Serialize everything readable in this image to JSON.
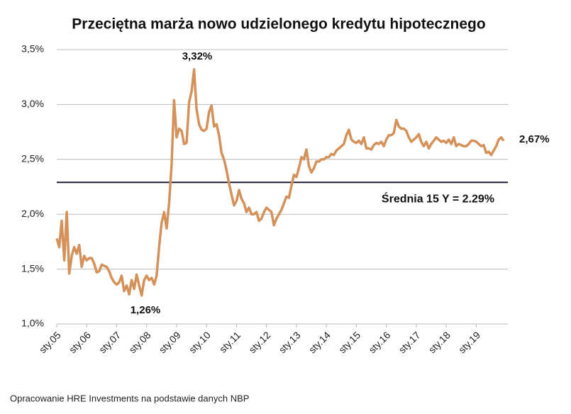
{
  "chart_data": {
    "type": "line",
    "title": "Przeciętna marża nowo udzielonego kredytu hipotecznego",
    "source": "Opracowanie HRE Investments na podstawie danych NBP",
    "annotations": [
      "3,32%",
      "1,26%",
      "2,67%"
    ],
    "mean": 2.29,
    "mean_label": "Średnia 15 Y = 2.29%",
    "mean_color": "#1c1c30",
    "categories": [
      "sty.05",
      null,
      null,
      null,
      null,
      null,
      null,
      null,
      null,
      null,
      null,
      null,
      "sty.06",
      null,
      null,
      null,
      null,
      null,
      null,
      null,
      null,
      null,
      null,
      null,
      "sty.07",
      null,
      null,
      null,
      null,
      null,
      null,
      null,
      null,
      null,
      null,
      null,
      "sty.08",
      null,
      null,
      null,
      null,
      null,
      null,
      null,
      null,
      null,
      null,
      null,
      "sty.09",
      null,
      null,
      null,
      null,
      null,
      null,
      null,
      null,
      null,
      null,
      null,
      "sty.10",
      null,
      null,
      null,
      null,
      null,
      null,
      null,
      null,
      null,
      null,
      null,
      "sty.11",
      null,
      null,
      null,
      null,
      null,
      null,
      null,
      null,
      null,
      null,
      null,
      "sty.12",
      null,
      null,
      null,
      null,
      null,
      null,
      null,
      null,
      null,
      null,
      null,
      "sty.13",
      null,
      null,
      null,
      null,
      null,
      null,
      null,
      null,
      null,
      null,
      null,
      "sty.14",
      null,
      null,
      null,
      null,
      null,
      null,
      null,
      null,
      null,
      null,
      null,
      "sty.15",
      null,
      null,
      null,
      null,
      null,
      null,
      null,
      null,
      null,
      null,
      null,
      "sty.16",
      null,
      null,
      null,
      null,
      null,
      null,
      null,
      null,
      null,
      null,
      null,
      "sty.17",
      null,
      null,
      null,
      null,
      null,
      null,
      null,
      null,
      null,
      null,
      null,
      "sty.18",
      null,
      null,
      null,
      null,
      null,
      null,
      null,
      null,
      null,
      null,
      null,
      "sty.19",
      null,
      null,
      null,
      null,
      null,
      null,
      null,
      null,
      null,
      null,
      null
    ],
    "series": [
      {
        "name": "Marża",
        "color": "#d4915a",
        "values": [
          1.78,
          1.7,
          1.94,
          1.58,
          2.02,
          1.46,
          1.62,
          1.7,
          1.64,
          1.72,
          1.52,
          1.62,
          1.58,
          1.6,
          1.6,
          1.55,
          1.47,
          1.48,
          1.54,
          1.53,
          1.52,
          1.48,
          1.42,
          1.38,
          1.36,
          1.38,
          1.44,
          1.3,
          1.35,
          1.27,
          1.4,
          1.32,
          1.45,
          1.35,
          1.26,
          1.4,
          1.44,
          1.4,
          1.42,
          1.36,
          1.44,
          1.7,
          1.92,
          2.02,
          1.87,
          2.1,
          2.45,
          3.04,
          2.7,
          2.78,
          2.76,
          2.64,
          2.65,
          3.02,
          3.12,
          3.32,
          2.96,
          2.82,
          2.77,
          2.76,
          2.78,
          2.93,
          2.99,
          2.8,
          2.82,
          2.72,
          2.56,
          2.5,
          2.4,
          2.28,
          2.18,
          2.08,
          2.12,
          2.22,
          2.14,
          2.1,
          2.02,
          2.06,
          2.0,
          2.0,
          2.02,
          1.94,
          1.96,
          2.02,
          2.06,
          2.04,
          2.02,
          1.9,
          1.96,
          2.0,
          2.04,
          2.1,
          2.16,
          2.15,
          2.26,
          2.36,
          2.34,
          2.42,
          2.52,
          2.5,
          2.59,
          2.44,
          2.38,
          2.42,
          2.48,
          2.48,
          2.5,
          2.5,
          2.52,
          2.52,
          2.55,
          2.54,
          2.58,
          2.6,
          2.62,
          2.64,
          2.72,
          2.77,
          2.68,
          2.66,
          2.65,
          2.67,
          2.64,
          2.7,
          2.6,
          2.6,
          2.59,
          2.63,
          2.65,
          2.64,
          2.66,
          2.62,
          2.68,
          2.72,
          2.72,
          2.74,
          2.86,
          2.8,
          2.78,
          2.78,
          2.76,
          2.7,
          2.66,
          2.68,
          2.7,
          2.73,
          2.66,
          2.62,
          2.66,
          2.6,
          2.64,
          2.67,
          2.7,
          2.68,
          2.66,
          2.67,
          2.65,
          2.68,
          2.64,
          2.7,
          2.62,
          2.64,
          2.63,
          2.62,
          2.62,
          2.64,
          2.67,
          2.67,
          2.66,
          2.64,
          2.62,
          2.63,
          2.56,
          2.57,
          2.54,
          2.58,
          2.62,
          2.68,
          2.7,
          2.67
        ]
      }
    ],
    "ylim": [
      1.0,
      3.5
    ],
    "yticks": [
      {
        "value": 1.0,
        "label": "1,0%"
      },
      {
        "value": 1.5,
        "label": "1,5%"
      },
      {
        "value": 2.0,
        "label": "2,0%"
      },
      {
        "value": 2.5,
        "label": "2,5%"
      },
      {
        "value": 3.0,
        "label": "3,0%"
      },
      {
        "value": 3.5,
        "label": "3,5%"
      }
    ],
    "grid": true
  }
}
